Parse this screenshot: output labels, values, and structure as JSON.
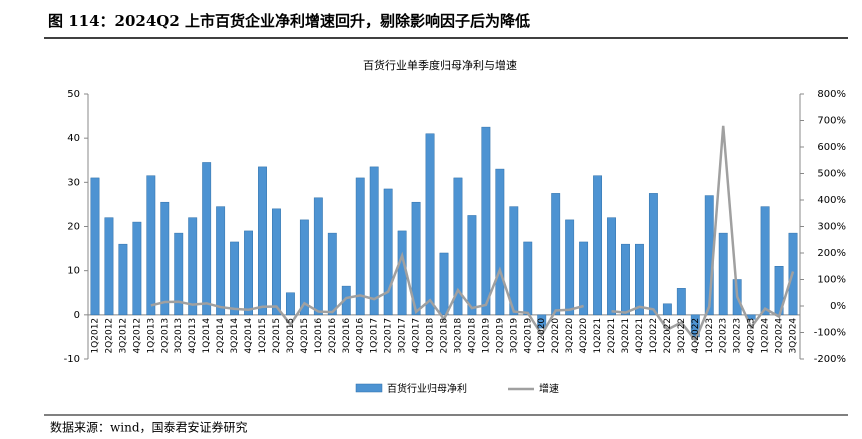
{
  "header": {
    "title": "图 114：2024Q2 上市百货企业净利增速回升，剔除影响因子后为降低"
  },
  "footer": {
    "source": "数据来源：wind，国泰君安证券研究"
  },
  "chart_data": {
    "type": "bar_line",
    "title": "百货行业单季度归母净利与增速",
    "categories": [
      "1Q2012",
      "2Q2012",
      "3Q2012",
      "4Q2012",
      "1Q2013",
      "2Q2013",
      "3Q2013",
      "4Q2013",
      "1Q2014",
      "2Q2014",
      "3Q2014",
      "4Q2014",
      "1Q2015",
      "2Q2015",
      "3Q2015",
      "4Q2015",
      "1Q2016",
      "2Q2016",
      "3Q2016",
      "4Q2016",
      "1Q2017",
      "2Q2017",
      "3Q2017",
      "4Q2017",
      "1Q2018",
      "2Q2018",
      "3Q2018",
      "4Q2018",
      "1Q2019",
      "2Q2019",
      "3Q2019",
      "4Q2019",
      "1Q2020",
      "2Q2020",
      "3Q2020",
      "4Q2020",
      "1Q2021",
      "2Q2021",
      "3Q2021",
      "4Q2021",
      "1Q2022",
      "2Q2022",
      "3Q2022",
      "4Q2022",
      "1Q2023",
      "2Q2023",
      "3Q2023",
      "4Q2023",
      "1Q2024",
      "2Q2024",
      "3Q2024"
    ],
    "series": [
      {
        "name": "百货行业归母净利",
        "type": "bar",
        "color": "#4d93d2",
        "axis": "y",
        "values": [
          31,
          22,
          16,
          21,
          31.5,
          25.5,
          18.5,
          22,
          34.5,
          24.5,
          16.5,
          19,
          33.5,
          24,
          5,
          21.5,
          26.5,
          18.5,
          6.5,
          31,
          33.5,
          28.5,
          19,
          25.5,
          41,
          14,
          31,
          22.5,
          42.5,
          33,
          24.5,
          16.5,
          -3,
          27.5,
          21.5,
          16.5,
          31.5,
          22,
          16,
          16,
          27.5,
          2.5,
          6,
          -5,
          27,
          18.5,
          8,
          -1,
          24.5,
          11,
          18.5
        ]
      },
      {
        "name": "增速",
        "type": "line",
        "color": "#a0a0a0",
        "axis": "y2",
        "values": [
          null,
          null,
          null,
          null,
          2,
          15,
          16,
          5,
          10,
          -4,
          -11,
          -14,
          -3,
          -2,
          -70,
          10,
          -21,
          -23,
          30,
          40,
          26,
          54,
          190,
          -22,
          22,
          -50,
          60,
          -8,
          4,
          136,
          -21,
          -26,
          -108,
          -17,
          -14,
          0,
          null,
          -20,
          -25,
          -3,
          -13,
          -89,
          -62,
          -130,
          -2,
          680,
          35,
          -80,
          -10,
          -40,
          130
        ]
      }
    ],
    "ylim": [
      -10,
      50
    ],
    "yticks": [
      -10,
      0,
      10,
      20,
      30,
      40,
      50
    ],
    "y2lim": [
      -200,
      800
    ],
    "y2ticks": [
      {
        "value": -200,
        "label": "-200%"
      },
      {
        "value": -100,
        "label": "-100%"
      },
      {
        "value": 0,
        "label": "0%"
      },
      {
        "value": 100,
        "label": "100%"
      },
      {
        "value": 200,
        "label": "200%"
      },
      {
        "value": 300,
        "label": "300%"
      },
      {
        "value": 400,
        "label": "400%"
      },
      {
        "value": 500,
        "label": "500%"
      },
      {
        "value": 600,
        "label": "600%"
      },
      {
        "value": 700,
        "label": "700%"
      },
      {
        "value": 800,
        "label": "800%"
      }
    ]
  }
}
